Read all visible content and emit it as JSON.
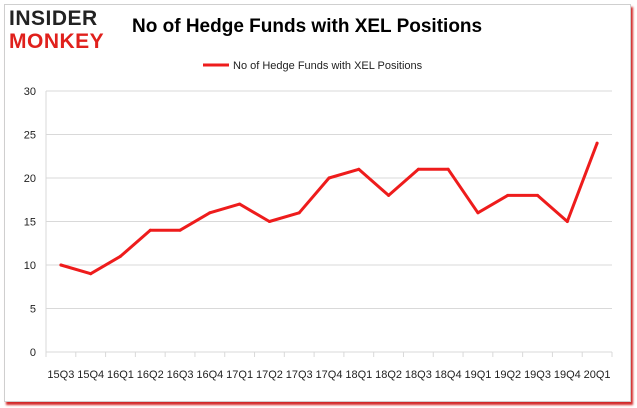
{
  "logo": {
    "line1": "INSIDER",
    "line2": "MONKEY"
  },
  "colors": {
    "line": "#ee1c1c",
    "grid": "#d9d9d9",
    "logo_red": "#e0201c"
  },
  "chart_data": {
    "type": "line",
    "title": "No of Hedge Funds with XEL Positions",
    "categories": [
      "15Q3",
      "15Q4",
      "16Q1",
      "16Q2",
      "16Q3",
      "16Q4",
      "17Q1",
      "17Q2",
      "17Q3",
      "17Q4",
      "18Q1",
      "18Q2",
      "18Q3",
      "18Q4",
      "19Q1",
      "19Q2",
      "19Q3",
      "19Q4",
      "20Q1"
    ],
    "series": [
      {
        "name": "No of Hedge Funds with XEL Positions",
        "values": [
          10,
          9,
          11,
          14,
          14,
          16,
          17,
          15,
          16,
          20,
          21,
          18,
          21,
          21,
          16,
          18,
          18,
          15,
          24
        ]
      }
    ],
    "ylim": [
      0,
      30
    ],
    "yticks": [
      0,
      5,
      10,
      15,
      20,
      25,
      30
    ],
    "xlabel": "",
    "ylabel": "",
    "legend": "top-center",
    "grid": true
  }
}
